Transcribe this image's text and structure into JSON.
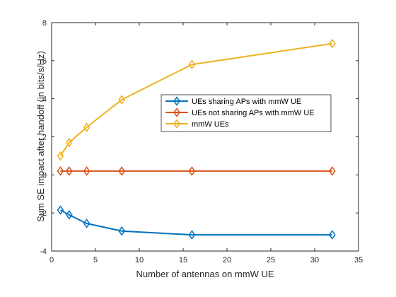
{
  "chart_data": {
    "type": "line",
    "xlabel": "Number of antennas on mmW UE",
    "ylabel": "Sum SE impact after handoff (in bits/s/Hz)",
    "xlim": [
      0,
      35
    ],
    "ylim": [
      -4,
      8
    ],
    "xticks": [
      0,
      5,
      10,
      15,
      20,
      25,
      30,
      35
    ],
    "yticks": [
      -4,
      -2,
      0,
      2,
      4,
      6,
      8
    ],
    "grid": false,
    "legend_position": "center-right",
    "x": [
      1,
      2,
      4,
      8,
      16,
      32
    ],
    "series": [
      {
        "name": "UEs sharing APs with mmW UE",
        "color": "#0072BD",
        "marker": "diamond",
        "values": [
          -1.85,
          -2.1,
          -2.55,
          -2.95,
          -3.15,
          -3.15
        ]
      },
      {
        "name": "UEs not sharing APs with mmW UE",
        "color": "#D95319",
        "marker": "diamond",
        "values": [
          0.2,
          0.2,
          0.2,
          0.2,
          0.2,
          0.2
        ]
      },
      {
        "name": "mmW UEs",
        "color": "#EDB120",
        "marker": "diamond",
        "values": [
          1.0,
          1.7,
          2.5,
          3.95,
          5.8,
          6.9
        ]
      }
    ]
  }
}
